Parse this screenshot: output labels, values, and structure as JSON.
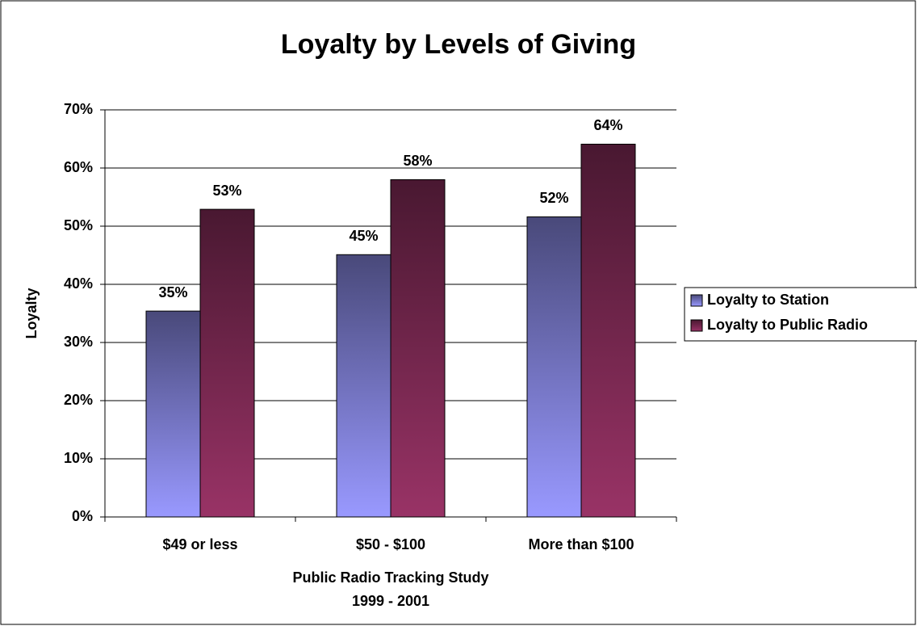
{
  "chart_data": {
    "type": "bar",
    "title": "Loyalty by Levels of Giving",
    "ylabel": "Loyalty",
    "xlabel": [
      "Public Radio Tracking Study",
      "1999 - 2001"
    ],
    "categories": [
      "$49 or less",
      "$50 - $100",
      "More than $100"
    ],
    "series": [
      {
        "name": "Loyalty to Station",
        "color": "#9999ff",
        "values": [
          35.4,
          45.1,
          51.6
        ],
        "value_labels": [
          "35%",
          "45%",
          "52%"
        ]
      },
      {
        "name": "Loyalty to Public Radio",
        "color": "#993366",
        "values": [
          52.9,
          58.0,
          64.1
        ],
        "value_labels": [
          "53%",
          "58%",
          "64%"
        ]
      }
    ],
    "ylim": [
      0,
      70
    ],
    "yticks": [
      {
        "value": 0,
        "label": "0%"
      },
      {
        "value": 10,
        "label": "10%"
      },
      {
        "value": 20,
        "label": "20%"
      },
      {
        "value": 30,
        "label": "30%"
      },
      {
        "value": 40,
        "label": "40%"
      },
      {
        "value": 50,
        "label": "50%"
      },
      {
        "value": 60,
        "label": "60%"
      },
      {
        "value": 70,
        "label": "70%"
      }
    ],
    "grid": true,
    "legend": "right"
  }
}
